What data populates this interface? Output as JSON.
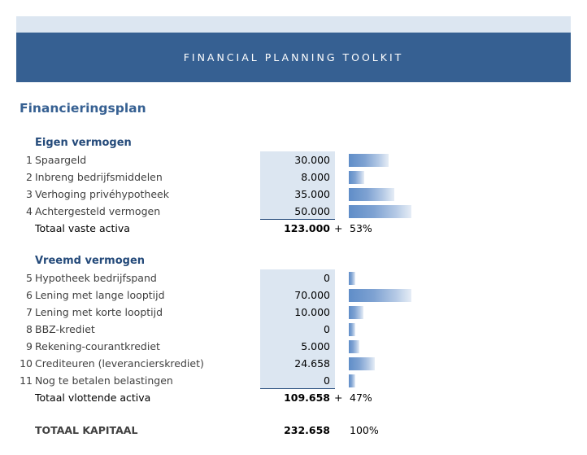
{
  "header": {
    "title": "FINANCIAL PLANNING TOOLKIT"
  },
  "page_title": "Financieringsplan",
  "colors": {
    "header": "#366092",
    "input_fill": "#dce6f1"
  },
  "eigen": {
    "heading": "Eigen vermogen",
    "max": 50000,
    "items": [
      {
        "n": "1",
        "label": "Spaargeld",
        "value": "30.000",
        "amount": 30000
      },
      {
        "n": "2",
        "label": "Inbreng bedrijfsmiddelen",
        "value": "8.000",
        "amount": 8000
      },
      {
        "n": "3",
        "label": "Verhoging privéhypotheek",
        "value": "35.000",
        "amount": 35000
      },
      {
        "n": "4",
        "label": "Achtergesteld vermogen",
        "value": "50.000",
        "amount": 50000
      }
    ],
    "total_label": "Totaal vaste activa",
    "total": "123.000",
    "plus": "+",
    "pct": "53%"
  },
  "vreemd": {
    "heading": "Vreemd vermogen",
    "max": 70000,
    "items": [
      {
        "n": "5",
        "label": "Hypotheek bedrijfspand",
        "value": "0",
        "amount": 0
      },
      {
        "n": "6",
        "label": "Lening met lange looptijd",
        "value": "70.000",
        "amount": 70000
      },
      {
        "n": "7",
        "label": "Lening met korte looptijd",
        "value": "10.000",
        "amount": 10000
      },
      {
        "n": "8",
        "label": "BBZ-krediet",
        "value": "0",
        "amount": 0
      },
      {
        "n": "9",
        "label": "Rekening-courantkrediet",
        "value": "5.000",
        "amount": 5000
      },
      {
        "n": "10",
        "label": "Crediteuren (leverancierskrediet)",
        "value": "24.658",
        "amount": 24658
      },
      {
        "n": "11",
        "label": "Nog te betalen belastingen",
        "value": "0",
        "amount": 0
      }
    ],
    "total_label": "Totaal vlottende activa",
    "total": "109.658",
    "plus": "+",
    "pct": "47%"
  },
  "grand": {
    "label": "TOTAAL KAPITAAL",
    "total": "232.658",
    "pct": "100%"
  }
}
